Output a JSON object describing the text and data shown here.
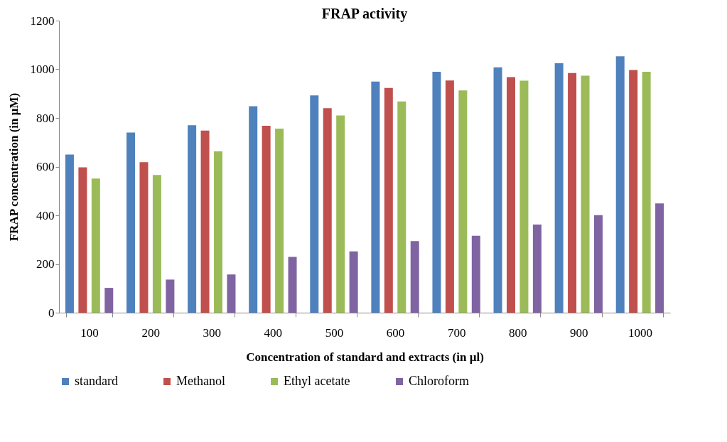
{
  "chart_data": {
    "type": "bar",
    "title": "FRAP activity",
    "xlabel": "Concentration of standard and extracts (in µl)",
    "ylabel": "FRAP concentration (in µM)",
    "categories": [
      "100",
      "200",
      "300",
      "400",
      "500",
      "600",
      "700",
      "800",
      "900",
      "1000"
    ],
    "series": [
      {
        "name": "standard",
        "color": "#4f81bd",
        "values": [
          650,
          740,
          770,
          848,
          893,
          950,
          990,
          1008,
          1025,
          1053
        ]
      },
      {
        "name": "Methanol",
        "color": "#c0504d",
        "values": [
          597,
          618,
          748,
          768,
          840,
          923,
          954,
          968,
          985,
          997
        ]
      },
      {
        "name": "Ethyl acetate",
        "color": "#9bbb59",
        "values": [
          551,
          566,
          663,
          756,
          810,
          868,
          913,
          953,
          974,
          990
        ]
      },
      {
        "name": "Chloroform",
        "color": "#8064a2",
        "values": [
          102,
          136,
          157,
          229,
          252,
          294,
          316,
          362,
          401,
          449
        ]
      }
    ],
    "ylim": [
      0,
      1200
    ],
    "yticks": [
      0,
      200,
      400,
      600,
      800,
      1000,
      1200
    ],
    "grid": false,
    "legend": "bottom"
  }
}
